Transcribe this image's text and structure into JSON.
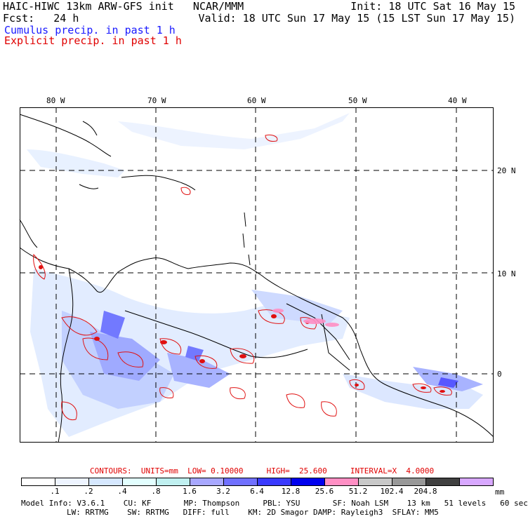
{
  "header": {
    "title": "HAIC-HIWC 13km ARW-GFS init   NCAR/MMM",
    "init": "Init: 18 UTC Sat 16 May 15",
    "fcst": "Fcst:   24 h",
    "valid": "Valid: 18 UTC Sun 17 May 15 (15 LST Sun 17 May 15)",
    "cumulus": "Cumulus precip. in past 1 h",
    "explicit": "Explicit precip. in past 1 h"
  },
  "map": {
    "lon_labels": [
      "80 W",
      "70 W",
      "60 W",
      "50 W",
      "40 W"
    ],
    "lat_labels": [
      "20 N",
      "10 N",
      "0"
    ],
    "colors": {
      "coast": "#000000",
      "contour": "#e01010",
      "grid": "#000000"
    }
  },
  "contours": {
    "text": "CONTOURS:  UNITS=mm  LOW= 0.10000     HIGH=  25.600     INTERVAL=X  4.0000"
  },
  "legend": {
    "ticks": [
      ".1",
      ".2",
      ".4",
      ".8",
      "1.6",
      "3.2",
      "6.4",
      "12.8",
      "25.6",
      "51.2",
      "102.4",
      "204.8"
    ],
    "unit": "mm",
    "colors": [
      "#ffffff",
      "#eef4ff",
      "#d6e8ff",
      "#e3ffff",
      "#c0f0f0",
      "#a8a8ff",
      "#7070ff",
      "#3a3aff",
      "#0000ee",
      "#ff8fc4",
      "#c8c8c8",
      "#989898",
      "#404040",
      "#d8a8ff"
    ]
  },
  "model_info": {
    "line1": "Model Info: V3.6.1    CU: KF       MP: Thompson     PBL: YSU       SF: Noah LSM    13 km   51 levels   60 sec",
    "line2": "LW: RRTMG    SW: RRTMG   DIFF: full    KM: 2D Smagor DAMP: Rayleigh3  SFLAY: MM5"
  }
}
